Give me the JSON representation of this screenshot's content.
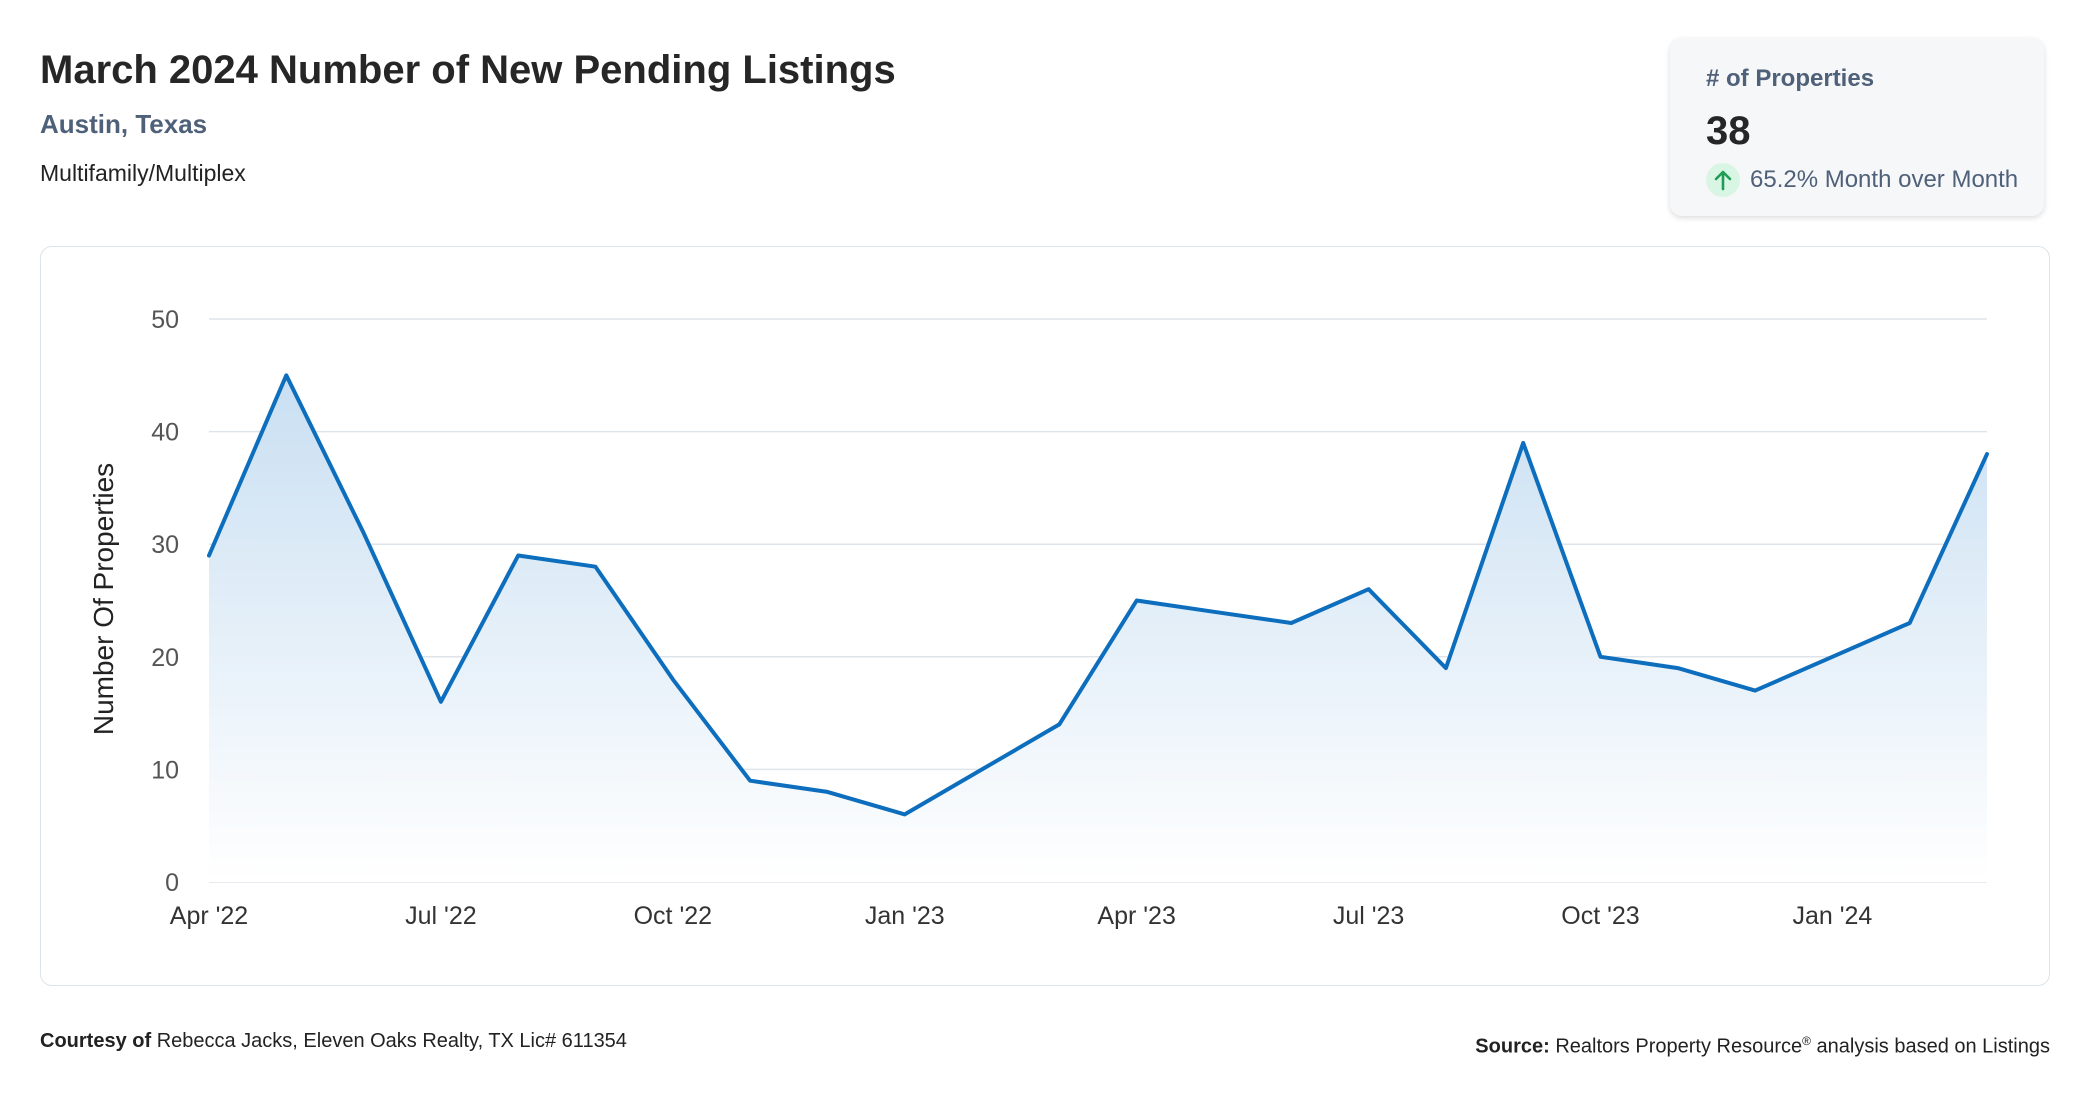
{
  "header": {
    "title": "March 2024 Number of New Pending Listings",
    "subtitle": "Austin, Texas",
    "property_type": "Multifamily/Multiplex"
  },
  "stat_card": {
    "label": "# of Properties",
    "value": "38",
    "change": "65.2% Month over Month",
    "change_icon": "arrow-up-icon",
    "change_icon_bg": "#d9f5e3",
    "change_icon_color": "#1f9d55"
  },
  "footer": {
    "courtesy_label": "Courtesy of",
    "courtesy_text": "Rebecca Jacks, Eleven Oaks Realty, TX Lic# 611354",
    "source_label": "Source:",
    "source_text_1": "Realtors Property Resource",
    "source_mark": "®",
    "source_text_2": "analysis based on Listings"
  },
  "colors": {
    "line": "#0d6ebd",
    "fill_top": "#c9dff2",
    "fill_bottom": "#ffffff",
    "grid": "#dfe4ea",
    "tick_text": "#555555"
  },
  "chart_data": {
    "type": "area",
    "ylabel": "Number Of Properties",
    "xlabel": "",
    "ylim": [
      0,
      50
    ],
    "yticks": [
      0,
      10,
      20,
      30,
      40,
      50
    ],
    "grid": true,
    "x": [
      "2022-04",
      "2022-05",
      "2022-06",
      "2022-07",
      "2022-08",
      "2022-09",
      "2022-10",
      "2022-11",
      "2022-12",
      "2023-01",
      "2023-02",
      "2023-03",
      "2023-04",
      "2023-05",
      "2023-06",
      "2023-07",
      "2023-08",
      "2023-09",
      "2023-10",
      "2023-11",
      "2023-12",
      "2024-01",
      "2024-02",
      "2024-03"
    ],
    "x_tick_labels": [
      {
        "x": "2022-04",
        "label": "Apr '22"
      },
      {
        "x": "2022-07",
        "label": "Jul '22"
      },
      {
        "x": "2022-10",
        "label": "Oct '22"
      },
      {
        "x": "2023-01",
        "label": "Jan '23"
      },
      {
        "x": "2023-04",
        "label": "Apr '23"
      },
      {
        "x": "2023-07",
        "label": "Jul '23"
      },
      {
        "x": "2023-10",
        "label": "Oct '23"
      },
      {
        "x": "2024-01",
        "label": "Jan '24"
      }
    ],
    "series": [
      {
        "values": [
          29,
          45,
          31,
          16,
          29,
          28,
          18,
          9,
          8,
          6,
          10,
          14,
          25,
          24,
          23,
          26,
          19,
          39,
          20,
          19,
          17,
          20,
          23,
          38
        ]
      }
    ]
  }
}
